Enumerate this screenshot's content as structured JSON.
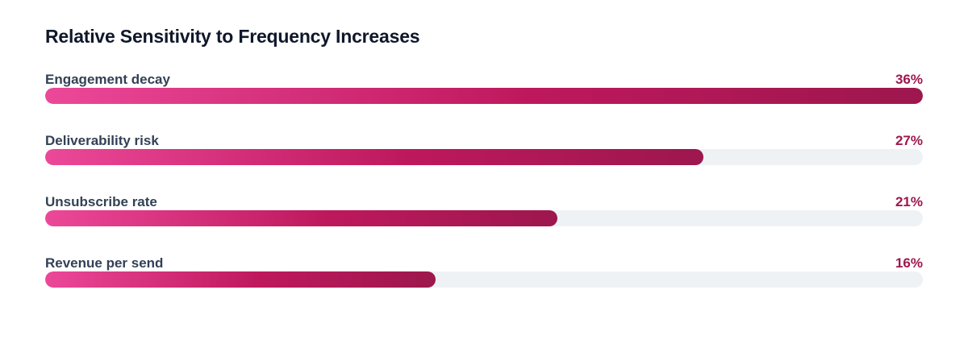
{
  "chart_data": {
    "type": "bar",
    "orientation": "horizontal",
    "title": "Relative Sensitivity to Frequency Increases",
    "categories": [
      "Engagement decay",
      "Deliverability risk",
      "Unsubscribe rate",
      "Revenue per send"
    ],
    "values": [
      36,
      27,
      21,
      16
    ],
    "value_labels": [
      "36%",
      "27%",
      "21%",
      "16%"
    ],
    "unit": "%",
    "xlim": [
      0,
      36
    ],
    "grid": false,
    "legend": "none",
    "colors": {
      "bar_start": "#ec4899",
      "bar_end": "#9d174d",
      "track": "#eef2f5",
      "value_text": "#9d174d",
      "label_text": "#334155",
      "title_text": "#0f172a"
    }
  }
}
